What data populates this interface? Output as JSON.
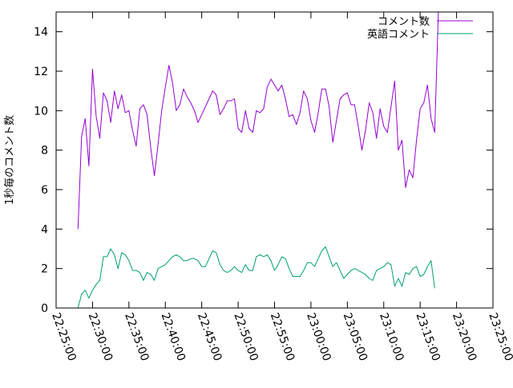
{
  "chart_data": {
    "type": "line",
    "title": "",
    "xlabel": "",
    "ylabel": "1秒毎のコメント数",
    "ylim": [
      0,
      15
    ],
    "yticks": [
      0,
      2,
      4,
      6,
      8,
      10,
      12,
      14
    ],
    "xlim": [
      "22:25:00",
      "23:25:00"
    ],
    "xticks": [
      "22:25:00",
      "22:30:00",
      "22:35:00",
      "22:40:00",
      "22:45:00",
      "22:50:00",
      "22:55:00",
      "23:00:00",
      "23:05:00",
      "23:10:00",
      "23:15:00",
      "23:20:00",
      "23:25:00"
    ],
    "grid": false,
    "legend_position": "top-right",
    "series": [
      {
        "name": "コメント数",
        "color": "#9400d3",
        "points": [
          [
            "22:28:00",
            4.0
          ],
          [
            "22:28:30",
            8.7
          ],
          [
            "22:29:00",
            9.6
          ],
          [
            "22:29:30",
            7.2
          ],
          [
            "22:30:00",
            12.1
          ],
          [
            "22:30:30",
            9.7
          ],
          [
            "22:31:00",
            8.6
          ],
          [
            "22:31:30",
            10.9
          ],
          [
            "22:32:00",
            10.5
          ],
          [
            "22:32:30",
            9.4
          ],
          [
            "22:33:00",
            11.0
          ],
          [
            "22:33:30",
            10.1
          ],
          [
            "22:34:00",
            10.8
          ],
          [
            "22:34:30",
            9.9
          ],
          [
            "22:35:00",
            10.0
          ],
          [
            "22:35:30",
            9.0
          ],
          [
            "22:36:00",
            8.2
          ],
          [
            "22:36:30",
            10.1
          ],
          [
            "22:37:00",
            10.3
          ],
          [
            "22:37:30",
            9.8
          ],
          [
            "22:38:00",
            8.1
          ],
          [
            "22:38:30",
            6.7
          ],
          [
            "22:39:00",
            8.3
          ],
          [
            "22:39:30",
            10.0
          ],
          [
            "22:40:00",
            11.2
          ],
          [
            "22:40:30",
            12.3
          ],
          [
            "22:41:00",
            11.4
          ],
          [
            "22:41:30",
            10.0
          ],
          [
            "22:42:00",
            10.3
          ],
          [
            "22:42:30",
            11.1
          ],
          [
            "22:43:00",
            10.7
          ],
          [
            "22:43:30",
            10.4
          ],
          [
            "22:44:00",
            10.0
          ],
          [
            "22:44:30",
            9.4
          ],
          [
            "22:45:00",
            9.8
          ],
          [
            "22:45:30",
            10.2
          ],
          [
            "22:46:00",
            10.6
          ],
          [
            "22:46:30",
            11.0
          ],
          [
            "22:47:00",
            10.8
          ],
          [
            "22:47:30",
            9.8
          ],
          [
            "22:48:00",
            10.1
          ],
          [
            "22:48:30",
            10.5
          ],
          [
            "22:49:00",
            10.5
          ],
          [
            "22:49:30",
            10.6
          ],
          [
            "22:50:00",
            9.1
          ],
          [
            "22:50:30",
            8.9
          ],
          [
            "22:51:00",
            10.0
          ],
          [
            "22:51:30",
            9.1
          ],
          [
            "22:52:00",
            8.9
          ],
          [
            "22:52:30",
            10.0
          ],
          [
            "22:53:00",
            9.9
          ],
          [
            "22:53:30",
            10.1
          ],
          [
            "22:54:00",
            11.2
          ],
          [
            "22:54:30",
            11.6
          ],
          [
            "22:55:00",
            11.3
          ],
          [
            "22:55:30",
            11.0
          ],
          [
            "22:56:00",
            11.3
          ],
          [
            "22:56:30",
            10.6
          ],
          [
            "22:57:00",
            9.7
          ],
          [
            "22:57:30",
            9.8
          ],
          [
            "22:58:00",
            9.3
          ],
          [
            "22:58:30",
            9.9
          ],
          [
            "22:59:00",
            11.0
          ],
          [
            "22:59:30",
            10.6
          ],
          [
            "23:00:00",
            9.5
          ],
          [
            "23:00:30",
            8.9
          ],
          [
            "23:01:00",
            9.9
          ],
          [
            "23:01:30",
            11.1
          ],
          [
            "23:02:00",
            11.1
          ],
          [
            "23:02:30",
            10.2
          ],
          [
            "23:03:00",
            8.4
          ],
          [
            "23:03:30",
            9.5
          ],
          [
            "23:04:00",
            10.6
          ],
          [
            "23:04:30",
            10.8
          ],
          [
            "23:05:00",
            10.9
          ],
          [
            "23:05:30",
            10.3
          ],
          [
            "23:06:00",
            10.3
          ],
          [
            "23:06:30",
            9.2
          ],
          [
            "23:07:00",
            8.0
          ],
          [
            "23:07:30",
            9.0
          ],
          [
            "23:08:00",
            10.4
          ],
          [
            "23:08:30",
            9.9
          ],
          [
            "23:09:00",
            8.6
          ],
          [
            "23:09:30",
            10.1
          ],
          [
            "23:10:00",
            9.2
          ],
          [
            "23:10:30",
            8.9
          ],
          [
            "23:11:00",
            10.2
          ],
          [
            "23:11:30",
            11.5
          ],
          [
            "23:12:00",
            8.0
          ],
          [
            "23:12:30",
            8.5
          ],
          [
            "23:13:00",
            6.1
          ],
          [
            "23:13:30",
            7.0
          ],
          [
            "23:14:00",
            6.6
          ],
          [
            "23:14:30",
            8.5
          ],
          [
            "23:15:00",
            10.1
          ],
          [
            "23:15:30",
            10.4
          ],
          [
            "23:16:00",
            11.3
          ],
          [
            "23:16:30",
            9.6
          ],
          [
            "23:17:00",
            8.9
          ],
          [
            "23:17:30",
            15.0
          ]
        ]
      },
      {
        "name": "英語コメント",
        "color": "#009e73",
        "points": [
          [
            "22:28:00",
            0.0
          ],
          [
            "22:28:30",
            0.7
          ],
          [
            "22:29:00",
            0.9
          ],
          [
            "22:29:30",
            0.5
          ],
          [
            "22:30:00",
            0.9
          ],
          [
            "22:30:30",
            1.2
          ],
          [
            "22:31:00",
            1.4
          ],
          [
            "22:31:30",
            2.6
          ],
          [
            "22:32:00",
            2.6
          ],
          [
            "22:32:30",
            3.0
          ],
          [
            "22:33:00",
            2.7
          ],
          [
            "22:33:30",
            2.0
          ],
          [
            "22:34:00",
            2.8
          ],
          [
            "22:34:30",
            2.7
          ],
          [
            "22:35:00",
            2.4
          ],
          [
            "22:35:30",
            1.9
          ],
          [
            "22:36:00",
            1.9
          ],
          [
            "22:36:30",
            1.8
          ],
          [
            "22:37:00",
            1.4
          ],
          [
            "22:37:30",
            1.8
          ],
          [
            "22:38:00",
            1.7
          ],
          [
            "22:38:30",
            1.4
          ],
          [
            "22:39:00",
            2.0
          ],
          [
            "22:39:30",
            2.1
          ],
          [
            "22:40:00",
            2.2
          ],
          [
            "22:40:30",
            2.4
          ],
          [
            "22:41:00",
            2.6
          ],
          [
            "22:41:30",
            2.7
          ],
          [
            "22:42:00",
            2.6
          ],
          [
            "22:42:30",
            2.4
          ],
          [
            "22:43:00",
            2.4
          ],
          [
            "22:43:30",
            2.5
          ],
          [
            "22:44:00",
            2.5
          ],
          [
            "22:44:30",
            2.4
          ],
          [
            "22:45:00",
            2.1
          ],
          [
            "22:45:30",
            2.1
          ],
          [
            "22:46:00",
            2.5
          ],
          [
            "22:46:30",
            2.9
          ],
          [
            "22:47:00",
            2.8
          ],
          [
            "22:47:30",
            2.2
          ],
          [
            "22:48:00",
            1.9
          ],
          [
            "22:48:30",
            1.8
          ],
          [
            "22:49:00",
            1.9
          ],
          [
            "22:49:30",
            2.1
          ],
          [
            "22:50:00",
            1.9
          ],
          [
            "22:50:30",
            1.8
          ],
          [
            "22:51:00",
            2.2
          ],
          [
            "22:51:30",
            1.9
          ],
          [
            "22:52:00",
            1.9
          ],
          [
            "22:52:30",
            2.6
          ],
          [
            "22:53:00",
            2.7
          ],
          [
            "22:53:30",
            2.6
          ],
          [
            "22:54:00",
            2.7
          ],
          [
            "22:54:30",
            2.4
          ],
          [
            "22:55:00",
            1.9
          ],
          [
            "22:55:30",
            2.2
          ],
          [
            "22:56:00",
            2.6
          ],
          [
            "22:56:30",
            2.5
          ],
          [
            "22:57:00",
            2.0
          ],
          [
            "22:57:30",
            1.6
          ],
          [
            "22:58:00",
            1.6
          ],
          [
            "22:58:30",
            1.6
          ],
          [
            "22:59:00",
            1.9
          ],
          [
            "22:59:30",
            2.3
          ],
          [
            "23:00:00",
            2.3
          ],
          [
            "23:00:30",
            2.1
          ],
          [
            "23:01:00",
            2.5
          ],
          [
            "23:01:30",
            2.9
          ],
          [
            "23:02:00",
            3.1
          ],
          [
            "23:02:30",
            2.6
          ],
          [
            "23:03:00",
            2.1
          ],
          [
            "23:03:30",
            2.3
          ],
          [
            "23:04:00",
            1.9
          ],
          [
            "23:04:30",
            1.5
          ],
          [
            "23:05:00",
            1.7
          ],
          [
            "23:05:30",
            1.9
          ],
          [
            "23:06:00",
            2.0
          ],
          [
            "23:06:30",
            1.9
          ],
          [
            "23:07:00",
            1.8
          ],
          [
            "23:07:30",
            1.7
          ],
          [
            "23:08:00",
            1.5
          ],
          [
            "23:08:30",
            1.4
          ],
          [
            "23:09:00",
            1.9
          ],
          [
            "23:09:30",
            2.0
          ],
          [
            "23:10:00",
            2.1
          ],
          [
            "23:10:30",
            2.3
          ],
          [
            "23:11:00",
            2.2
          ],
          [
            "23:11:30",
            1.1
          ],
          [
            "23:12:00",
            1.5
          ],
          [
            "23:12:30",
            1.1
          ],
          [
            "23:13:00",
            1.8
          ],
          [
            "23:13:30",
            1.7
          ],
          [
            "23:14:00",
            2.0
          ],
          [
            "23:14:30",
            2.1
          ],
          [
            "23:15:00",
            1.6
          ],
          [
            "23:15:30",
            1.7
          ],
          [
            "23:16:00",
            2.1
          ],
          [
            "23:16:30",
            2.4
          ],
          [
            "23:17:00",
            1.0
          ]
        ]
      }
    ]
  }
}
